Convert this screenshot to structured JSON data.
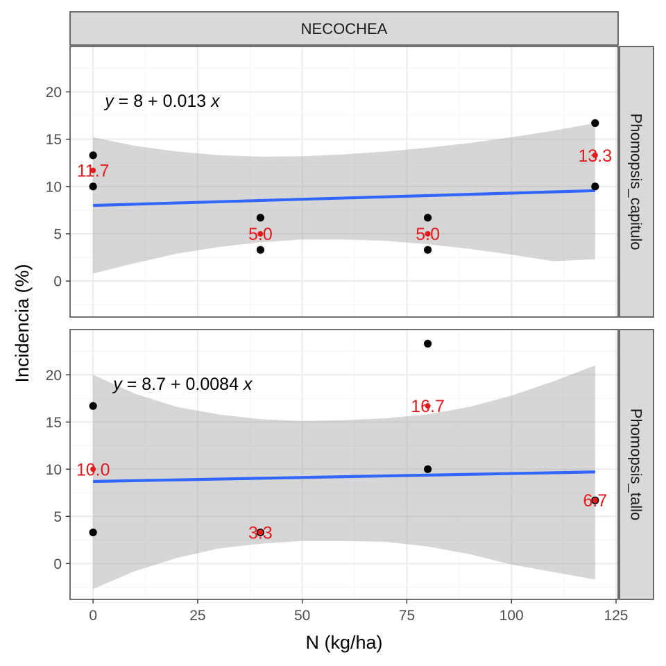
{
  "chart_data": {
    "type": "scatter",
    "facet_title": "NECOCHEA",
    "xlabel": "N (kg/ha)",
    "ylabel": "Incidencia (%)",
    "xlim": [
      -5.5,
      125.5
    ],
    "x_ticks": [
      0,
      25,
      50,
      75,
      100,
      125
    ],
    "y_ticks": [
      0,
      5,
      10,
      15,
      20
    ],
    "colors": {
      "panel_border": "#333333",
      "grid_major": "#ebebeb",
      "grid_minor": "#f5f5f5",
      "strip_fill": "#d9d9d9",
      "ribbon": "#999999",
      "line": "#3366ff",
      "point": "#000000",
      "mean": "#e41a1c"
    },
    "panels": [
      {
        "strip": "Phomopsis_capitulo",
        "ylim": [
          -3.8,
          24.8
        ],
        "equation": {
          "prefix": "y",
          "rest": " = 8 + 0.013 ",
          "var": "x",
          "x": 2,
          "y": 19
        },
        "fit": {
          "intercept": 8.0,
          "slope": 0.013
        },
        "ribbon": {
          "x": [
            0,
            10,
            20,
            30,
            40,
            50,
            60,
            70,
            80,
            90,
            100,
            110,
            120
          ],
          "upper": [
            15.2,
            14.3,
            13.7,
            13.3,
            13.15,
            13.2,
            13.4,
            13.7,
            14.1,
            14.6,
            15.2,
            15.9,
            16.7
          ],
          "lower": [
            0.8,
            1.9,
            2.9,
            3.6,
            4.1,
            4.4,
            4.4,
            4.25,
            3.9,
            3.4,
            2.8,
            2.1,
            2.3
          ]
        },
        "points": [
          {
            "x": 0,
            "y": 13.3
          },
          {
            "x": 0,
            "y": 10.0
          },
          {
            "x": 40,
            "y": 6.7
          },
          {
            "x": 40,
            "y": 3.3
          },
          {
            "x": 80,
            "y": 6.7
          },
          {
            "x": 80,
            "y": 3.3
          },
          {
            "x": 120,
            "y": 16.7
          },
          {
            "x": 120,
            "y": 10.0
          }
        ],
        "means": [
          {
            "x": 0,
            "y": 11.7,
            "label": "11.7"
          },
          {
            "x": 40,
            "y": 5.0,
            "label": "5.0"
          },
          {
            "x": 80,
            "y": 5.0,
            "label": "5.0"
          },
          {
            "x": 120,
            "y": 13.3,
            "label": "13.3"
          }
        ]
      },
      {
        "strip": "Phomopsis_tallo",
        "ylim": [
          -3.8,
          24.8
        ],
        "equation": {
          "prefix": "y",
          "rest": " = 8.7 + 0.0084 ",
          "var": "x",
          "x": 4,
          "y": 19
        },
        "fit": {
          "intercept": 8.7,
          "slope": 0.0084
        },
        "ribbon": {
          "x": [
            0,
            10,
            20,
            30,
            40,
            50,
            60,
            70,
            80,
            90,
            100,
            110,
            120
          ],
          "upper": [
            20.0,
            18.0,
            16.6,
            15.8,
            15.3,
            15.1,
            15.2,
            15.4,
            15.8,
            16.6,
            17.8,
            19.3,
            21.0
          ],
          "lower": [
            -2.7,
            -0.8,
            0.6,
            1.6,
            2.1,
            2.4,
            2.4,
            2.3,
            1.8,
            1.0,
            -0.1,
            -0.9,
            -1.7
          ]
        },
        "points": [
          {
            "x": 0,
            "y": 16.7
          },
          {
            "x": 0,
            "y": 3.3
          },
          {
            "x": 40,
            "y": 3.3
          },
          {
            "x": 80,
            "y": 23.3
          },
          {
            "x": 80,
            "y": 10.0
          },
          {
            "x": 120,
            "y": 6.7
          }
        ],
        "means": [
          {
            "x": 0,
            "y": 10.0,
            "label": "10.0"
          },
          {
            "x": 40,
            "y": 3.3,
            "label": "3.3"
          },
          {
            "x": 80,
            "y": 16.7,
            "label": "16.7"
          },
          {
            "x": 120,
            "y": 6.7,
            "label": "6.7"
          }
        ]
      }
    ]
  }
}
